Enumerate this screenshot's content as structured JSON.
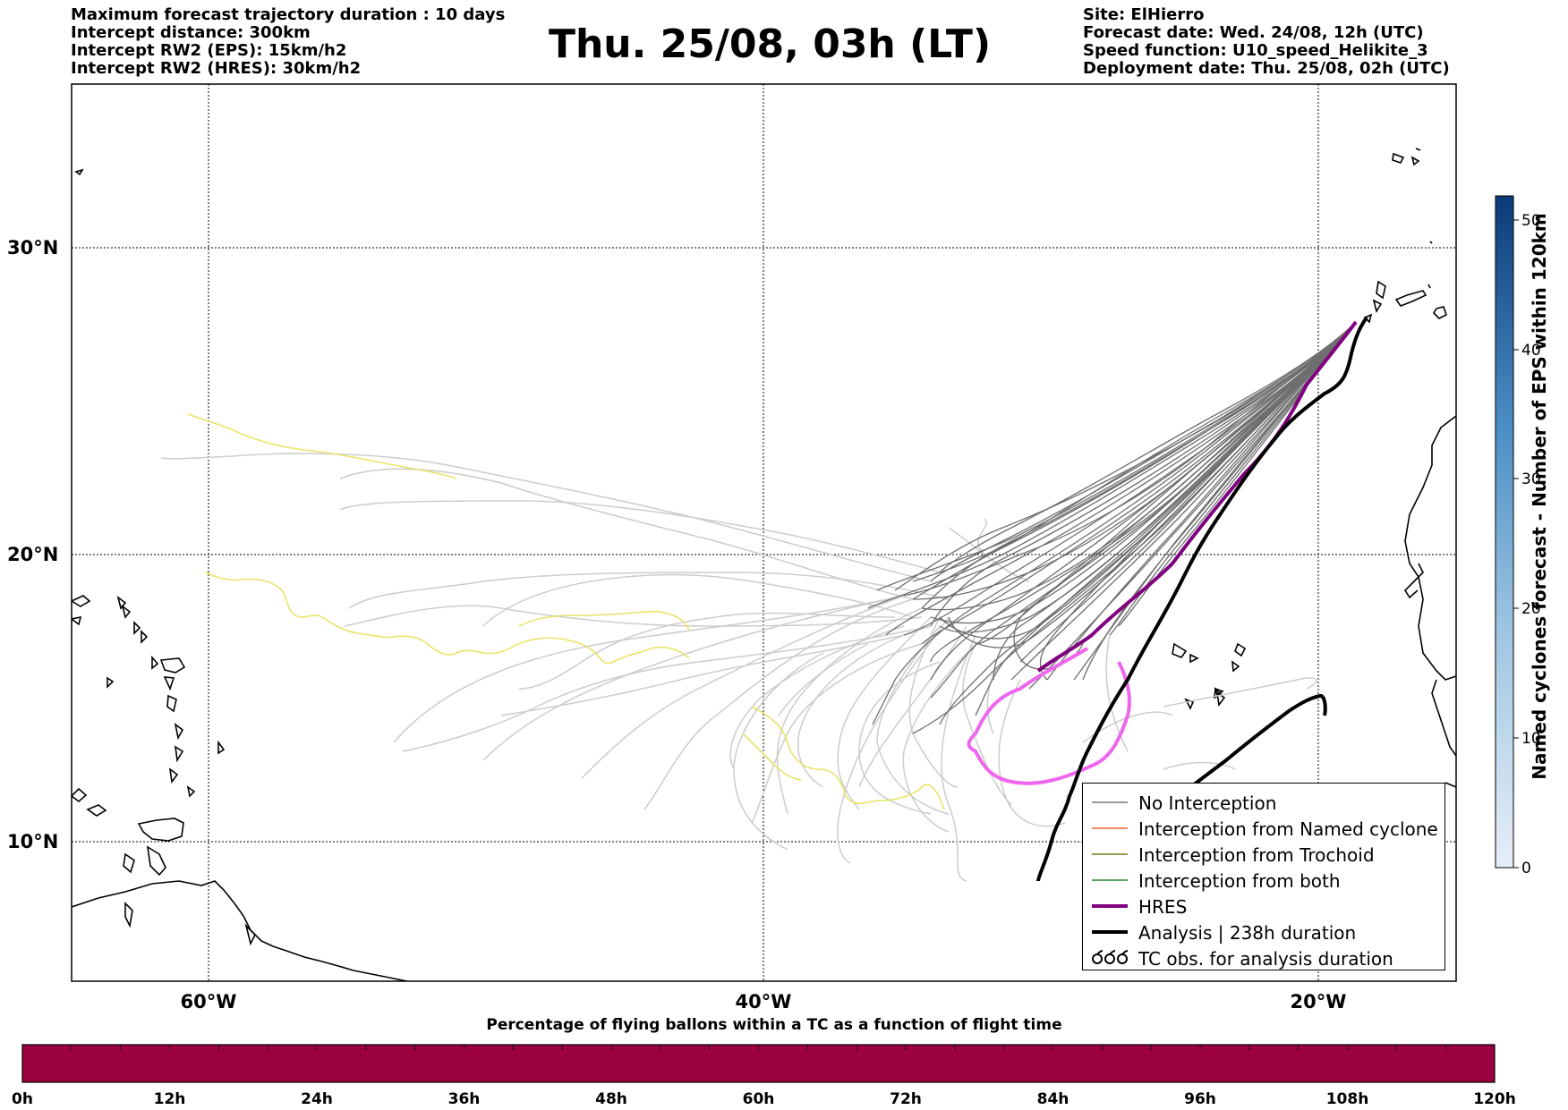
{
  "header": {
    "left_lines": [
      "Maximum forecast trajectory duration : 10 days",
      "Intercept distance: 300km",
      "Intercept RW2 (EPS):  15km/h2",
      "Intercept RW2 (HRES): 30km/h2"
    ],
    "right_lines": [
      "Site: ElHierro",
      "Forecast date: Wed. 24/08, 12h (UTC)",
      "Speed function: U10_speed_Helikite_3",
      "Deployment date: Thu. 25/08, 02h (UTC)"
    ],
    "title": "Thu. 25/08, 03h (LT)"
  },
  "map": {
    "lat_labels": [
      "30°N",
      "20°N",
      "10°N"
    ],
    "lon_labels": [
      "60°W",
      "40°W",
      "20°W"
    ]
  },
  "legend": {
    "items": [
      {
        "label": "No Interception",
        "color": "#777777",
        "style": "thin"
      },
      {
        "label": "Interception from Named cyclone",
        "color": "#e8632b",
        "style": "thin"
      },
      {
        "label": "Interception from Trochoid",
        "color": "#7a7a1a",
        "style": "thin"
      },
      {
        "label": "Interception from both",
        "color": "#2a8a2a",
        "style": "thin"
      },
      {
        "label": "HRES",
        "color": "#800080",
        "style": "thick"
      },
      {
        "label": "Analysis | 238h duration",
        "color": "#000000",
        "style": "thick"
      },
      {
        "label": "TC obs. for analysis duration",
        "color": "#000000",
        "style": "symbol"
      }
    ]
  },
  "colorbar_right": {
    "label": "Named cyclones forecast - Number of EPS within 120km",
    "ticks": [
      "0",
      "10",
      "20",
      "30",
      "40",
      "50"
    ],
    "color_low": "#e6eef8",
    "color_high": "#0b3b78"
  },
  "time_bar": {
    "title": "Percentage of flying ballons within a TC as a function of flight time",
    "ticks": [
      "0h",
      "12h",
      "24h",
      "36h",
      "48h",
      "60h",
      "72h",
      "84h",
      "96h",
      "108h",
      "120h"
    ],
    "color": "#9b003f"
  },
  "colors": {
    "eps_gray": "#6e6e6e",
    "light_gray": "#cccccc",
    "yellow": "#e8e46a",
    "hres": "#800080",
    "pink": "#ee66ee",
    "analysis": "#000000"
  }
}
